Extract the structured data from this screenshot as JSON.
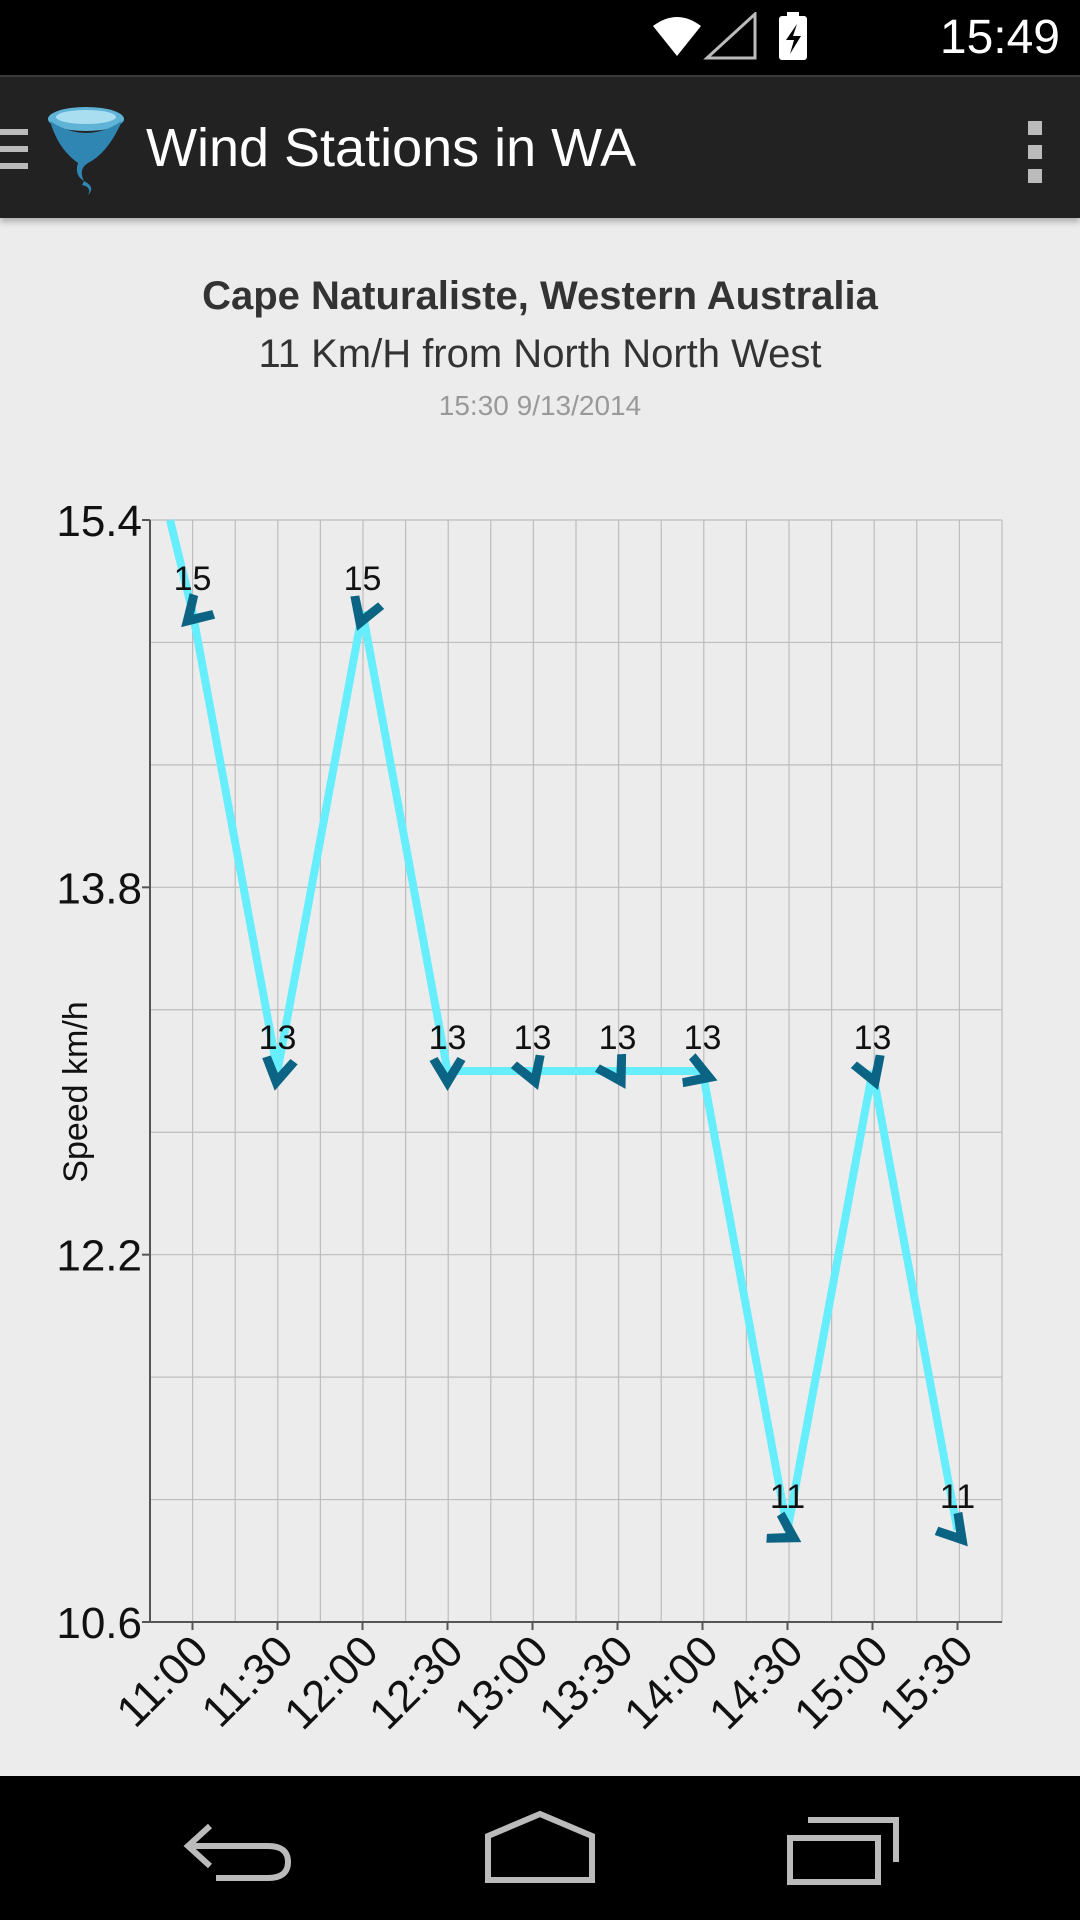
{
  "status_bar": {
    "time": "15:49"
  },
  "app_bar": {
    "title": "Wind Stations in WA"
  },
  "chart_header": {
    "title": "Cape Naturaliste, Western Australia",
    "subtitle": "11 Km/H from North North West",
    "timestamp": "15:30 9/13/2014"
  },
  "chart_data": {
    "type": "line",
    "title": "Cape Naturaliste, Western Australia",
    "xlabel": "",
    "ylabel": "Speed km/h",
    "ylim": [
      10.6,
      15.4
    ],
    "yticks": [
      "15.4",
      "13.8",
      "12.2",
      "10.6"
    ],
    "ytick_values": [
      15.4,
      13.8,
      12.2,
      10.6
    ],
    "categories": [
      "11:00",
      "11:30",
      "12:00",
      "12:30",
      "13:00",
      "13:30",
      "14:00",
      "14:30",
      "15:00",
      "15:30"
    ],
    "values": [
      15,
      13,
      15,
      13,
      13,
      13,
      13,
      11,
      13,
      11
    ],
    "data_labels": [
      "15",
      "13",
      "15",
      "13",
      "13",
      "13",
      "13",
      "11",
      "13",
      "11"
    ],
    "wind_direction_arrows": [
      225,
      190,
      200,
      180,
      160,
      150,
      110,
      120,
      160,
      140
    ],
    "grid": true,
    "line_color": "#66eefc",
    "arrow_color": "#0b6483"
  }
}
